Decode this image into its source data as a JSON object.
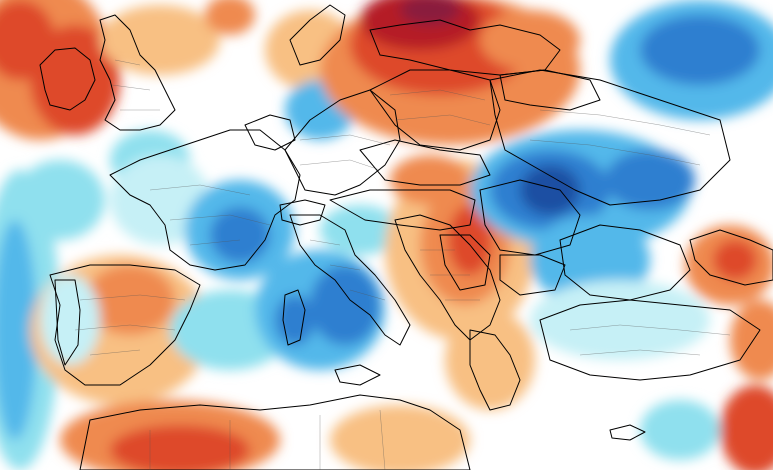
{
  "map": {
    "type": "temperature-anomaly",
    "region": "Europe",
    "legend": "",
    "title": "",
    "colors": {
      "land_neutral": "#ffffff",
      "warm_1": "#fde8c8",
      "warm_2": "#f8c083",
      "warm_3": "#ef8a50",
      "warm_4": "#de4a2b",
      "warm_5": "#b51f28",
      "warm_6": "#8a1a3e",
      "cool_1": "#c6f0f6",
      "cool_2": "#8fe0ee",
      "cool_3": "#52b8ea",
      "cool_4": "#2e7fd0",
      "cool_5": "#1e4fa3",
      "border": "#000000"
    }
  }
}
